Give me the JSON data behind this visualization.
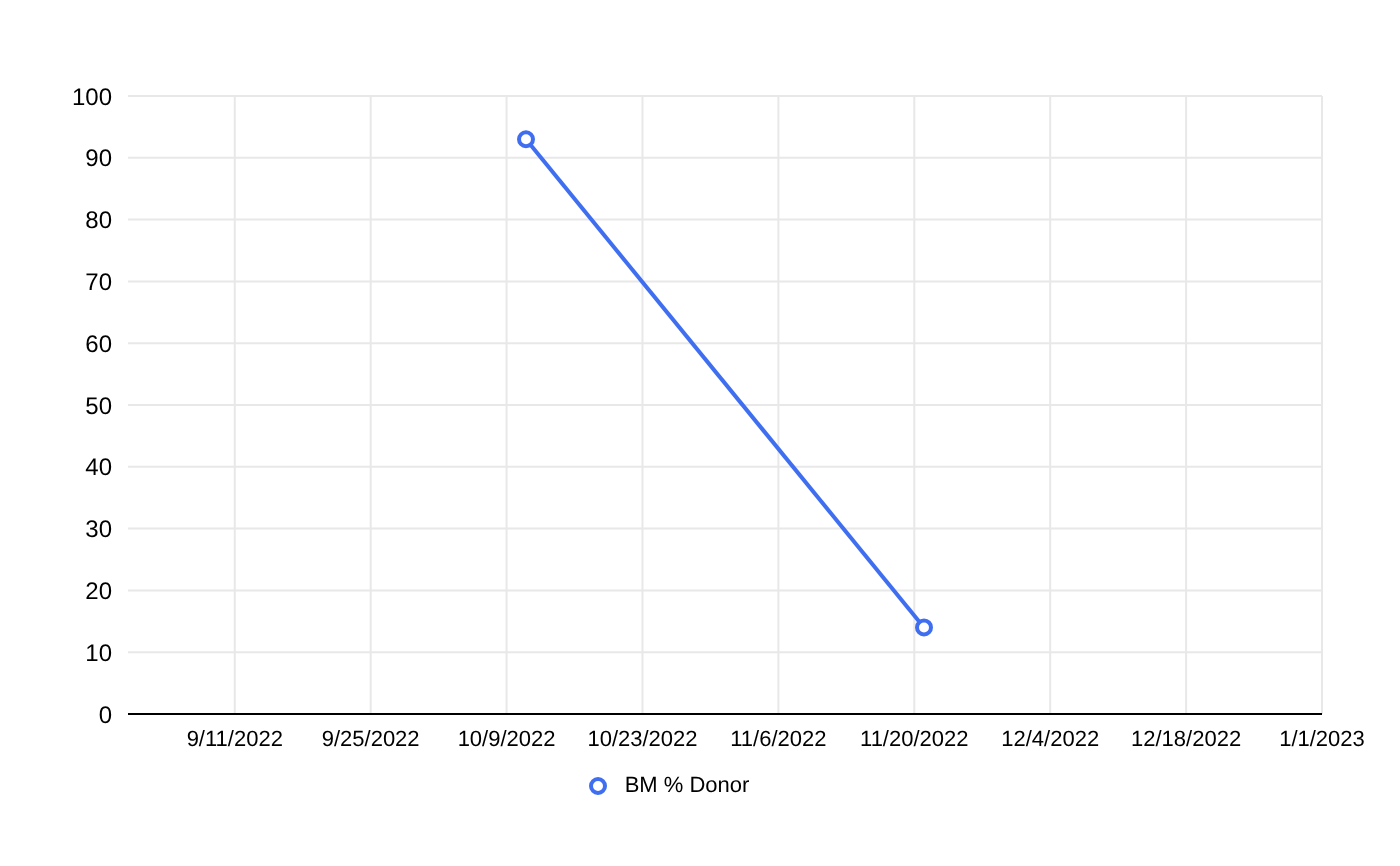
{
  "chart_data": {
    "type": "line",
    "x": [
      "2022-10-11",
      "2022-11-21"
    ],
    "series": [
      {
        "name": "BM % Donor",
        "color": "#3f6ff0",
        "values": [
          93,
          14
        ]
      }
    ],
    "xlim": [
      "2022-08-31",
      "2023-01-01"
    ],
    "xticks": [
      {
        "value": "2022-09-11",
        "label": "9/11/2022"
      },
      {
        "value": "2022-09-25",
        "label": "9/25/2022"
      },
      {
        "value": "2022-10-09",
        "label": "10/9/2022"
      },
      {
        "value": "2022-10-23",
        "label": "10/23/2022"
      },
      {
        "value": "2022-11-06",
        "label": "11/6/2022"
      },
      {
        "value": "2022-11-20",
        "label": "11/20/2022"
      },
      {
        "value": "2022-12-04",
        "label": "12/4/2022"
      },
      {
        "value": "2022-12-18",
        "label": "12/18/2022"
      },
      {
        "value": "2023-01-01",
        "label": "1/1/2023"
      }
    ],
    "ylim": [
      0,
      100
    ],
    "yticks": [
      0,
      10,
      20,
      30,
      40,
      50,
      60,
      70,
      80,
      90,
      100
    ],
    "grid": true,
    "legend": "bottom",
    "marker": "circle",
    "line_style": "solid"
  }
}
